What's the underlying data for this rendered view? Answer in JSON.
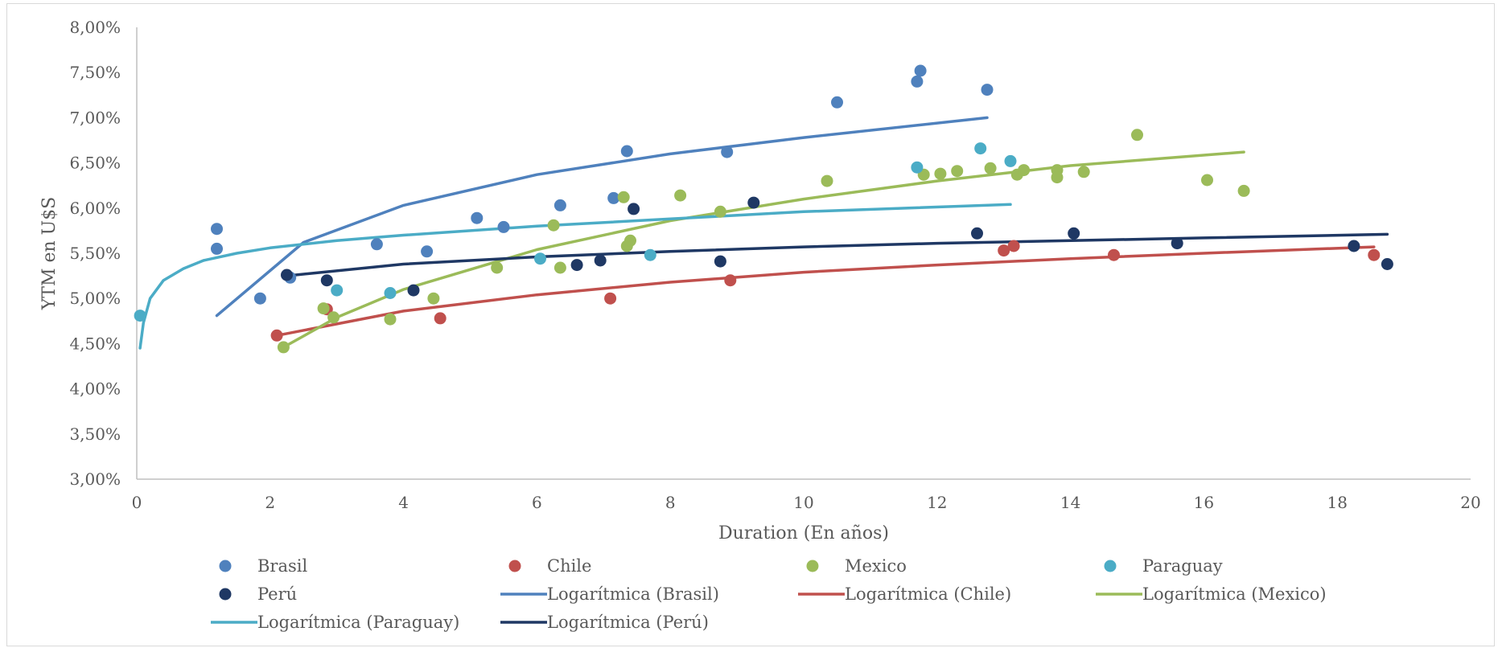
{
  "chart_data": {
    "type": "scatter",
    "xlabel": "Duration (En años)",
    "ylabel": "YTM en U$S",
    "xlim": [
      0,
      20
    ],
    "ylim": [
      3.0,
      8.0
    ],
    "x_ticks": [
      "0",
      "2",
      "4",
      "6",
      "8",
      "10",
      "12",
      "14",
      "16",
      "18",
      "20"
    ],
    "y_ticks": [
      "3,00%",
      "3,50%",
      "4,00%",
      "4,50%",
      "5,00%",
      "5,50%",
      "6,00%",
      "6,50%",
      "7,00%",
      "7,50%",
      "8,00%"
    ],
    "grid": false,
    "legend_position": "bottom",
    "series": [
      {
        "name": "Brasil",
        "kind": "points",
        "color": "#4f81bd",
        "points": [
          [
            1.2,
            5.77
          ],
          [
            1.2,
            5.55
          ],
          [
            1.85,
            5.0
          ],
          [
            2.3,
            5.23
          ],
          [
            3.6,
            5.6
          ],
          [
            4.35,
            5.52
          ],
          [
            5.1,
            5.89
          ],
          [
            5.5,
            5.79
          ],
          [
            6.35,
            6.03
          ],
          [
            7.15,
            6.11
          ],
          [
            7.35,
            6.63
          ],
          [
            8.85,
            6.62
          ],
          [
            10.5,
            7.17
          ],
          [
            11.7,
            7.4
          ],
          [
            11.75,
            7.52
          ],
          [
            12.75,
            7.31
          ]
        ]
      },
      {
        "name": "Chile",
        "kind": "points",
        "color": "#c0504d",
        "points": [
          [
            2.1,
            4.59
          ],
          [
            2.85,
            4.88
          ],
          [
            4.55,
            4.78
          ],
          [
            7.1,
            5.0
          ],
          [
            8.9,
            5.2
          ],
          [
            13.0,
            5.53
          ],
          [
            13.15,
            5.58
          ],
          [
            14.65,
            5.48
          ],
          [
            18.55,
            5.48
          ]
        ]
      },
      {
        "name": "Mexico",
        "kind": "points",
        "color": "#9bbb59",
        "points": [
          [
            2.2,
            4.46
          ],
          [
            2.8,
            4.89
          ],
          [
            2.95,
            4.79
          ],
          [
            3.8,
            4.77
          ],
          [
            4.45,
            5.0
          ],
          [
            5.4,
            5.34
          ],
          [
            6.25,
            5.81
          ],
          [
            6.35,
            5.34
          ],
          [
            7.3,
            6.12
          ],
          [
            7.35,
            5.58
          ],
          [
            7.4,
            5.64
          ],
          [
            8.15,
            6.14
          ],
          [
            8.75,
            5.96
          ],
          [
            10.35,
            6.3
          ],
          [
            11.8,
            6.37
          ],
          [
            12.05,
            6.38
          ],
          [
            12.3,
            6.41
          ],
          [
            12.8,
            6.44
          ],
          [
            13.2,
            6.37
          ],
          [
            13.3,
            6.42
          ],
          [
            13.8,
            6.42
          ],
          [
            13.8,
            6.34
          ],
          [
            14.2,
            6.4
          ],
          [
            15.0,
            6.81
          ],
          [
            16.05,
            6.31
          ],
          [
            16.6,
            6.19
          ]
        ]
      },
      {
        "name": "Paraguay",
        "kind": "points",
        "color": "#4bacc6",
        "points": [
          [
            0.05,
            4.81
          ],
          [
            3.0,
            5.09
          ],
          [
            3.8,
            5.06
          ],
          [
            6.05,
            5.44
          ],
          [
            7.7,
            5.48
          ],
          [
            11.7,
            6.45
          ],
          [
            12.65,
            6.66
          ],
          [
            13.1,
            6.52
          ]
        ]
      },
      {
        "name": "Perú",
        "kind": "points",
        "color": "#1f3864",
        "points": [
          [
            2.25,
            5.26
          ],
          [
            2.85,
            5.2
          ],
          [
            4.15,
            5.09
          ],
          [
            6.6,
            5.37
          ],
          [
            6.95,
            5.42
          ],
          [
            7.45,
            5.99
          ],
          [
            8.75,
            5.41
          ],
          [
            9.25,
            6.06
          ],
          [
            12.6,
            5.72
          ],
          [
            14.05,
            5.72
          ],
          [
            15.6,
            5.61
          ],
          [
            18.25,
            5.58
          ],
          [
            18.75,
            5.38
          ]
        ]
      },
      {
        "name": "Logarítmica (Brasil)",
        "kind": "trend",
        "color": "#4f81bd",
        "points": [
          [
            1.2,
            4.81
          ],
          [
            2.5,
            5.62
          ],
          [
            4.0,
            6.03
          ],
          [
            6.0,
            6.37
          ],
          [
            8.0,
            6.6
          ],
          [
            10.0,
            6.78
          ],
          [
            12.75,
            7.0
          ]
        ]
      },
      {
        "name": "Logarítmica (Chile)",
        "kind": "trend",
        "color": "#c0504d",
        "points": [
          [
            2.1,
            4.59
          ],
          [
            4.0,
            4.86
          ],
          [
            6.0,
            5.04
          ],
          [
            8.0,
            5.18
          ],
          [
            10.0,
            5.29
          ],
          [
            12.0,
            5.37
          ],
          [
            14.0,
            5.44
          ],
          [
            16.0,
            5.5
          ],
          [
            18.55,
            5.57
          ]
        ]
      },
      {
        "name": "Logarítmica (Mexico)",
        "kind": "trend",
        "color": "#9bbb59",
        "points": [
          [
            2.2,
            4.46
          ],
          [
            3.0,
            4.79
          ],
          [
            4.0,
            5.1
          ],
          [
            6.0,
            5.54
          ],
          [
            8.0,
            5.86
          ],
          [
            10.0,
            6.1
          ],
          [
            12.0,
            6.3
          ],
          [
            14.0,
            6.47
          ],
          [
            16.6,
            6.62
          ]
        ]
      },
      {
        "name": "Logarítmica (Paraguay)",
        "kind": "trend",
        "color": "#4bacc6",
        "points": [
          [
            0.05,
            4.45
          ],
          [
            0.1,
            4.73
          ],
          [
            0.2,
            5.0
          ],
          [
            0.4,
            5.2
          ],
          [
            0.7,
            5.33
          ],
          [
            1.0,
            5.42
          ],
          [
            1.5,
            5.5
          ],
          [
            2.0,
            5.56
          ],
          [
            3.0,
            5.64
          ],
          [
            4.0,
            5.7
          ],
          [
            6.0,
            5.8
          ],
          [
            8.0,
            5.88
          ],
          [
            10.0,
            5.96
          ],
          [
            13.1,
            6.04
          ]
        ]
      },
      {
        "name": "Logarítmica (Perú)",
        "kind": "trend",
        "color": "#1f3864",
        "points": [
          [
            2.25,
            5.25
          ],
          [
            4.0,
            5.38
          ],
          [
            6.0,
            5.46
          ],
          [
            8.0,
            5.52
          ],
          [
            10.0,
            5.57
          ],
          [
            12.0,
            5.61
          ],
          [
            14.0,
            5.64
          ],
          [
            16.0,
            5.67
          ],
          [
            18.75,
            5.71
          ]
        ]
      }
    ]
  }
}
